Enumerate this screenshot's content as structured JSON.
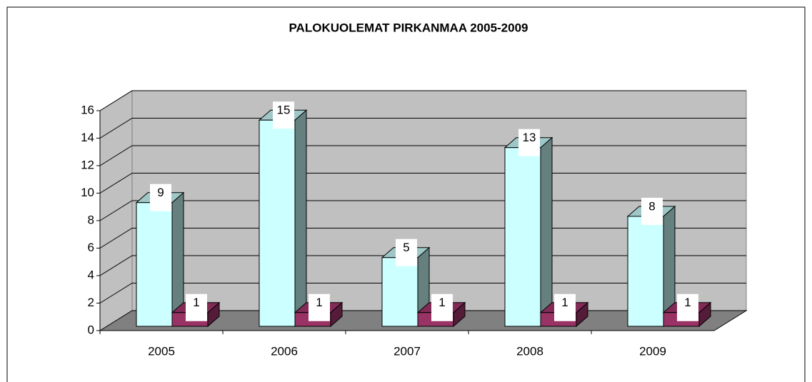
{
  "chart_data": {
    "type": "bar3d",
    "title": "PALOKUOLEMAT PIRKANMAA 2005-2009",
    "categories": [
      "2005",
      "2006",
      "2007",
      "2008",
      "2009"
    ],
    "series": [
      {
        "color": "#ccffff",
        "values": [
          9,
          15,
          5,
          13,
          8
        ]
      },
      {
        "color": "#993366",
        "values": [
          1,
          1,
          1,
          1,
          1
        ]
      }
    ],
    "ylim": [
      0,
      16
    ],
    "yticks": [
      0,
      2,
      4,
      6,
      8,
      10,
      12,
      14,
      16
    ],
    "grid": true
  }
}
